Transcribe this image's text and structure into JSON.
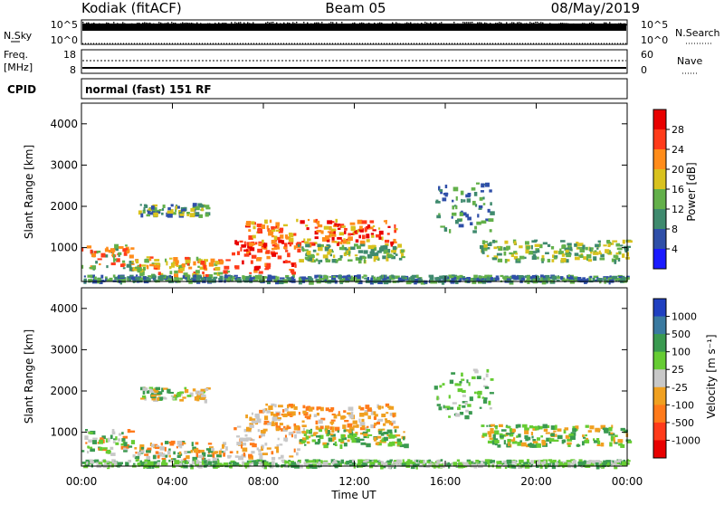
{
  "header": {
    "title": "Kodiak (fitACF)",
    "beam": "Beam 05",
    "date": "08/May/2019"
  },
  "noise_panel": {
    "left_label": "N.Sky",
    "left_ticks": [
      "10^5",
      "10^0"
    ],
    "right_ticks": [
      "10^5",
      "10^0"
    ],
    "right_label": "N.Search"
  },
  "freq_panel": {
    "left_label_1": "Freq.",
    "left_label_2": "[MHz]",
    "left_ticks": [
      "18",
      "8"
    ],
    "right_ticks": [
      "60",
      "0"
    ],
    "right_label": "Nave"
  },
  "cpid_panel": {
    "label": "CPID",
    "value": "normal (fast) 151 RF"
  },
  "chart_data": [
    {
      "type": "heatmap",
      "parameter": "Power",
      "ylabel": "Slant Range [km]",
      "ylim": [
        180,
        4500
      ],
      "yticks": [
        "1000",
        "2000",
        "3000",
        "4000"
      ],
      "colorbar_label": "Power [dB]",
      "colorbar_ticks": [
        "4",
        "8",
        "12",
        "16",
        "20",
        "24",
        "28"
      ],
      "colors": [
        "#1a1aff",
        "#2f4fa8",
        "#3f8a6e",
        "#63b04a",
        "#d9c21e",
        "#ff8c1a",
        "#ff3b1a",
        "#e80000"
      ]
    },
    {
      "type": "heatmap",
      "parameter": "Velocity",
      "ylabel": "Slant Range [km]",
      "ylim": [
        180,
        4500
      ],
      "yticks": [
        "1000",
        "2000",
        "3000",
        "4000"
      ],
      "colorbar_label": "Velocity [m s⁻¹]",
      "colorbar_ticks": [
        "1000",
        "500",
        "100",
        "25",
        "-25",
        "-100",
        "-500",
        "-1000"
      ],
      "colors": [
        "#2040c0",
        "#3a7aa0",
        "#3a9a50",
        "#66cc33",
        "#c8c8c8",
        "#f0a020",
        "#ff7a1a",
        "#ff3a1a",
        "#e80000"
      ]
    }
  ],
  "xaxis": {
    "xlabel": "Time UT",
    "ticks": [
      "00:00",
      "04:00",
      "08:00",
      "12:00",
      "16:00",
      "20:00",
      "00:00"
    ]
  }
}
